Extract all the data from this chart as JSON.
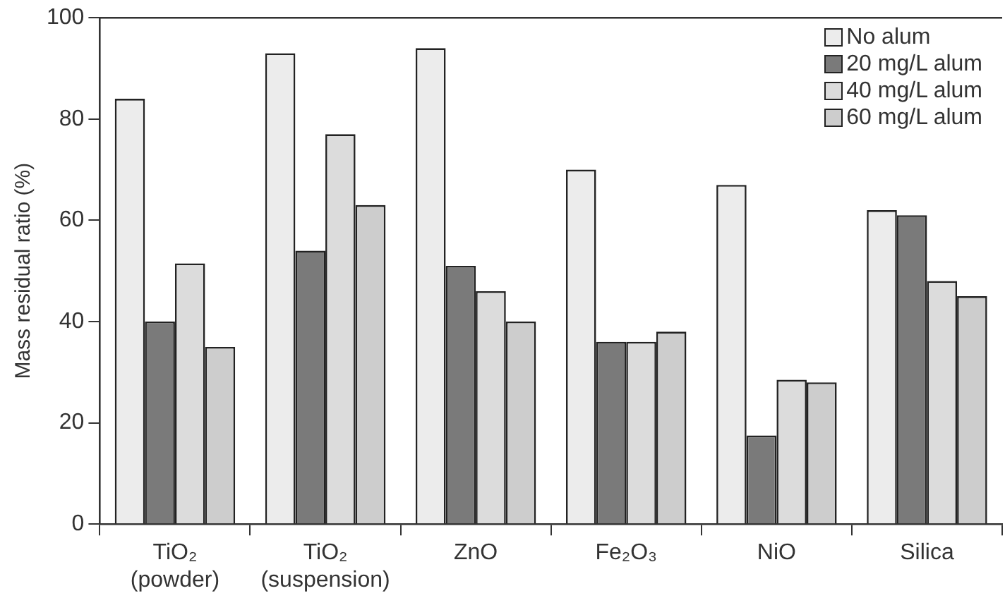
{
  "chart_data": {
    "type": "bar",
    "ylabel": "Mass residual ratio (%)",
    "categories": [
      "TiO₂\n(powder)",
      "TiO₂\n(suspension)",
      "ZnO",
      "Fe₂O₃",
      "NiO",
      "Silica"
    ],
    "series": [
      {
        "name": "No alum",
        "color": "#ececec",
        "values": [
          84,
          93,
          94,
          70,
          67,
          62
        ]
      },
      {
        "name": "20 mg/L alum",
        "color": "#7a7a7a",
        "values": [
          40,
          54,
          51,
          36,
          17.5,
          61
        ]
      },
      {
        "name": "40 mg/L alum",
        "color": "#dcdcdc",
        "values": [
          51.5,
          77,
          46,
          36,
          28.5,
          48
        ]
      },
      {
        "name": "60 mg/L alum",
        "color": "#cdcdcd",
        "values": [
          35,
          63,
          40,
          38,
          28,
          45
        ]
      }
    ],
    "ylim": [
      0,
      100
    ],
    "yticks": [
      0,
      20,
      40,
      60,
      80,
      100
    ],
    "grid": false,
    "legend": "top right"
  }
}
